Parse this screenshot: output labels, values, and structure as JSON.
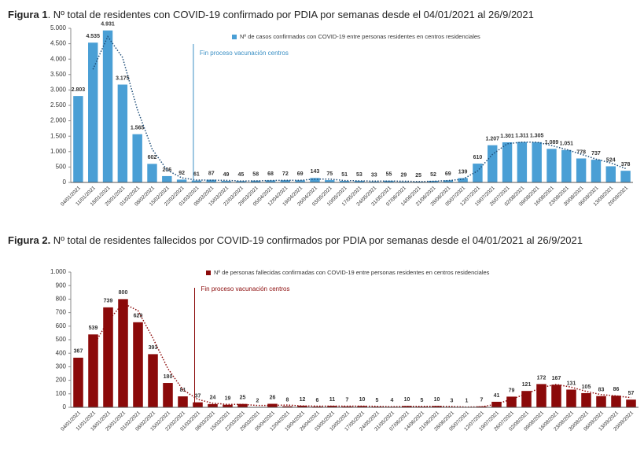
{
  "chart_data": [
    {
      "type": "bar",
      "title_prefix": "Figura 1",
      "title": ". Nº total de residentes con COVID-19 confirmado por PDIA por semanas desde el 04/01/2021 al 26/9/2021",
      "annotation": "Fin proceso vacunación centros",
      "categories": [
        "04/01/2021",
        "11/01/2021",
        "18/01/2021",
        "25/01/2021",
        "01/02/2021",
        "08/02/2021",
        "15/02/2021",
        "22/02/2021",
        "01/03/2021",
        "08/03/2021",
        "15/03/2021",
        "22/03/2021",
        "29/03/2021",
        "05/04/2021",
        "12/04/2021",
        "19/04/2021",
        "26/04/2021",
        "03/05/2021",
        "10/05/2021",
        "17/05/2021",
        "24/05/2021",
        "31/05/2021",
        "07/06/2021",
        "14/06/2021",
        "21/06/2021",
        "28/06/2021",
        "05/07/2021",
        "12/07/2021",
        "19/07/2021",
        "26/07/2021",
        "02/08/2021",
        "09/08/2021",
        "16/08/2021",
        "23/08/2021",
        "30/08/2021",
        "06/09/2021",
        "13/09/2021",
        "20/09/2021"
      ],
      "series": [
        {
          "name": "Nº de casos confirmados con COVID-19 entre personas residentes en centros residenciales",
          "color": "#4a9fd5",
          "trend_color": "#1f4e79",
          "values": [
            2803,
            4535,
            4931,
            3175,
            1565,
            602,
            206,
            92,
            61,
            87,
            49,
            45,
            58,
            68,
            72,
            69,
            143,
            75,
            51,
            53,
            33,
            55,
            29,
            25,
            52,
            69,
            139,
            610,
            1207,
            1301,
            1311,
            1305,
            1089,
            1051,
            778,
            737,
            524,
            378
          ],
          "value_labels": [
            "2.803",
            "4.535",
            "4.931",
            "3.175",
            "1.565",
            "602",
            "206",
            "92",
            "61",
            "87",
            "49",
            "45",
            "58",
            "68",
            "72",
            "69",
            "143",
            "75",
            "51",
            "53",
            "33",
            "55",
            "29",
            "25",
            "52",
            "69",
            "139",
            "610",
            "1.207",
            "1.301",
            "1.311",
            "1.305",
            "1.089",
            "1.051",
            "778",
            "737",
            "524",
            "378"
          ]
        }
      ],
      "ylim": [
        0,
        5000
      ],
      "yticks": [
        0,
        500,
        {
          "value": 1000,
          "label": "1.000"
        },
        {
          "value": 1500,
          "label": "1.500"
        },
        {
          "value": 2000,
          "label": "2.000"
        },
        {
          "value": 2500,
          "label": "2.500"
        },
        {
          "value": 3000,
          "label": "3.000"
        },
        {
          "value": 3500,
          "label": "3.500"
        },
        {
          "value": 4000,
          "label": "4.000"
        },
        {
          "value": 4500,
          "label": "4.500"
        },
        {
          "value": 5000,
          "label": "5.000"
        }
      ]
    },
    {
      "type": "bar",
      "title_prefix": "Figura 2.",
      "title": " Nº total de residentes fallecidos por COVID-19 confirmados por PDIA por semanas desde el 04/01/2021 al 26/9/2021",
      "annotation": "Fin proceso vacunación centros",
      "categories": [
        "04/01/2021",
        "11/01/2021",
        "18/01/2021",
        "25/01/2021",
        "01/02/2021",
        "08/02/2021",
        "15/02/2021",
        "22/02/2021",
        "01/03/2021",
        "08/03/2021",
        "15/03/2021",
        "22/03/2021",
        "29/03/2021",
        "05/04/2021",
        "12/04/2021",
        "19/04/2021",
        "26/04/2021",
        "03/05/2021",
        "10/05/2021",
        "17/05/2021",
        "24/05/2021",
        "31/05/2021",
        "07/06/2021",
        "14/06/2021",
        "21/06/2021",
        "28/06/2021",
        "05/07/2021",
        "12/07/2021",
        "19/07/2021",
        "26/07/2021",
        "02/08/2021",
        "09/08/2021",
        "16/08/2021",
        "23/08/2021",
        "30/08/2021",
        "06/09/2021",
        "13/09/2021",
        "20/09/2021"
      ],
      "series": [
        {
          "name": "Nº de personas fallecidas confirmadas con COVID-19 entre personas residentes en centros residenciales",
          "color": "#8b0a0a",
          "trend_color": "#8b0a0a",
          "values": [
            367,
            539,
            739,
            800,
            629,
            393,
            180,
            81,
            37,
            24,
            19,
            25,
            2,
            26,
            8,
            12,
            6,
            11,
            7,
            10,
            5,
            4,
            10,
            5,
            10,
            3,
            1,
            7,
            41,
            79,
            121,
            172,
            167,
            131,
            105,
            83,
            86,
            57
          ]
        }
      ],
      "ylim": [
        0,
        1000
      ],
      "yticks": [
        0,
        100,
        200,
        300,
        400,
        500,
        600,
        700,
        800,
        900,
        {
          "value": 1000,
          "label": "1.000"
        }
      ]
    }
  ]
}
